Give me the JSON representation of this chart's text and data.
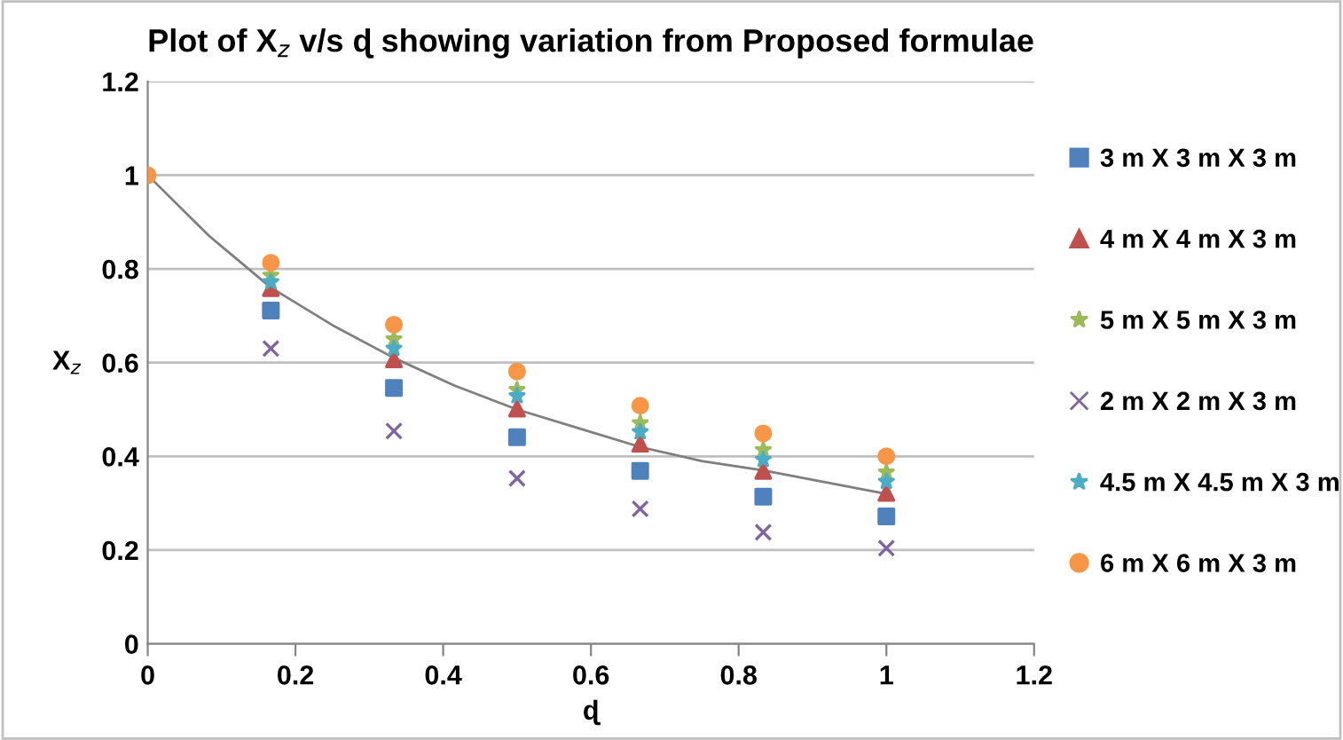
{
  "chart_data": {
    "type": "scatter",
    "title": "Plot of Χ$_{z}$ v/s ɖ showing variation from Proposed formulae",
    "xlabel": "ɖ",
    "ylabel": "Χ$_{z}$",
    "x": [
      0,
      0.1667,
      0.3333,
      0.5,
      0.6667,
      0.8333,
      1
    ],
    "series": [
      {
        "name": "3 m X 3 m X 3 m",
        "color": "#4f81bd",
        "marker": "square",
        "values": [
          null,
          0.711,
          0.546,
          0.441,
          0.369,
          0.314,
          0.272
        ]
      },
      {
        "name": "4 m X 4 m X 3 m",
        "color": "#c0504d",
        "marker": "triangle",
        "values": [
          null,
          0.759,
          0.607,
          0.502,
          0.427,
          0.369,
          0.322
        ]
      },
      {
        "name": "5 m X 5 m X 3 m",
        "color": "#9bbb59",
        "marker": "star",
        "values": [
          null,
          0.786,
          0.65,
          0.542,
          0.471,
          0.414,
          0.366
        ]
      },
      {
        "name": "2 m X 2 m X 3 m",
        "color": "#8064a2",
        "marker": "cross",
        "values": [
          null,
          0.63,
          0.454,
          0.353,
          0.288,
          0.238,
          0.204
        ]
      },
      {
        "name": "4.5 m X 4.5 m X 3 m",
        "color": "#4bacc6",
        "marker": "star",
        "values": [
          null,
          0.772,
          0.63,
          0.529,
          0.452,
          0.393,
          0.346
        ]
      },
      {
        "name": "6 m X 6 m X 3 m",
        "color": "#f79646",
        "marker": "circle",
        "values": [
          1,
          0.813,
          0.681,
          0.581,
          0.508,
          0.449,
          0.4
        ]
      },
      {
        "type": "line",
        "color": "#7f7f7f",
        "marker": "none",
        "x": [
          0,
          0.0833,
          0.1667,
          0.25,
          0.3333,
          0.4167,
          0.5,
          0.5833,
          0.6667,
          0.75,
          0.8333,
          0.9167,
          1
        ],
        "values": [
          1,
          0.87,
          0.76,
          0.68,
          0.61,
          0.55,
          0.5,
          0.46,
          0.42,
          0.39,
          0.37,
          0.345,
          0.32
        ]
      }
    ],
    "xlim": [
      0,
      1.2
    ],
    "xticks": [
      0,
      0.2,
      0.4,
      0.6,
      0.8,
      1,
      1.2
    ],
    "ylim": [
      0,
      1.2
    ],
    "yticks": [
      0,
      0.2,
      0.4,
      0.6,
      0.8,
      1,
      1.2
    ],
    "grid": "y",
    "legend": "right"
  }
}
